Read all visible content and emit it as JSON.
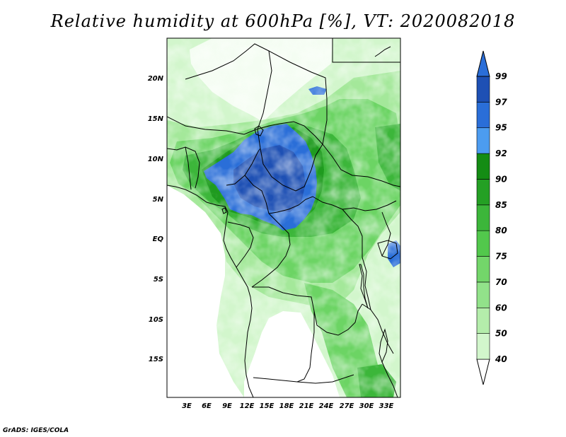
{
  "title": "Relative humidity at 600hPa [%], VT: 2020082018",
  "credit": "GrADS: IGES/COLA",
  "map": {
    "lon_range": [
      0,
      34.5
    ],
    "lat_range": [
      -20,
      25
    ],
    "lat_ticks": [
      "20N",
      "15N",
      "10N",
      "5N",
      "EQ",
      "5S",
      "10S",
      "15S"
    ],
    "lon_ticks": [
      "3E",
      "6E",
      "9E",
      "12E",
      "15E",
      "18E",
      "21E",
      "24E",
      "27E",
      "30E",
      "33E"
    ]
  },
  "colorbar": {
    "levels": [
      "40",
      "50",
      "60",
      "70",
      "75",
      "80",
      "85",
      "90",
      "92",
      "95",
      "97",
      "99"
    ],
    "colors": [
      "#f0fcee",
      "#d2f6cc",
      "#b4edab",
      "#92e28a",
      "#73d66a",
      "#52c84c",
      "#3cb63a",
      "#24a024",
      "#148c14",
      "#4c9cf0",
      "#2a6ed8",
      "#1e50b4",
      "#2a6ed8"
    ]
  }
}
